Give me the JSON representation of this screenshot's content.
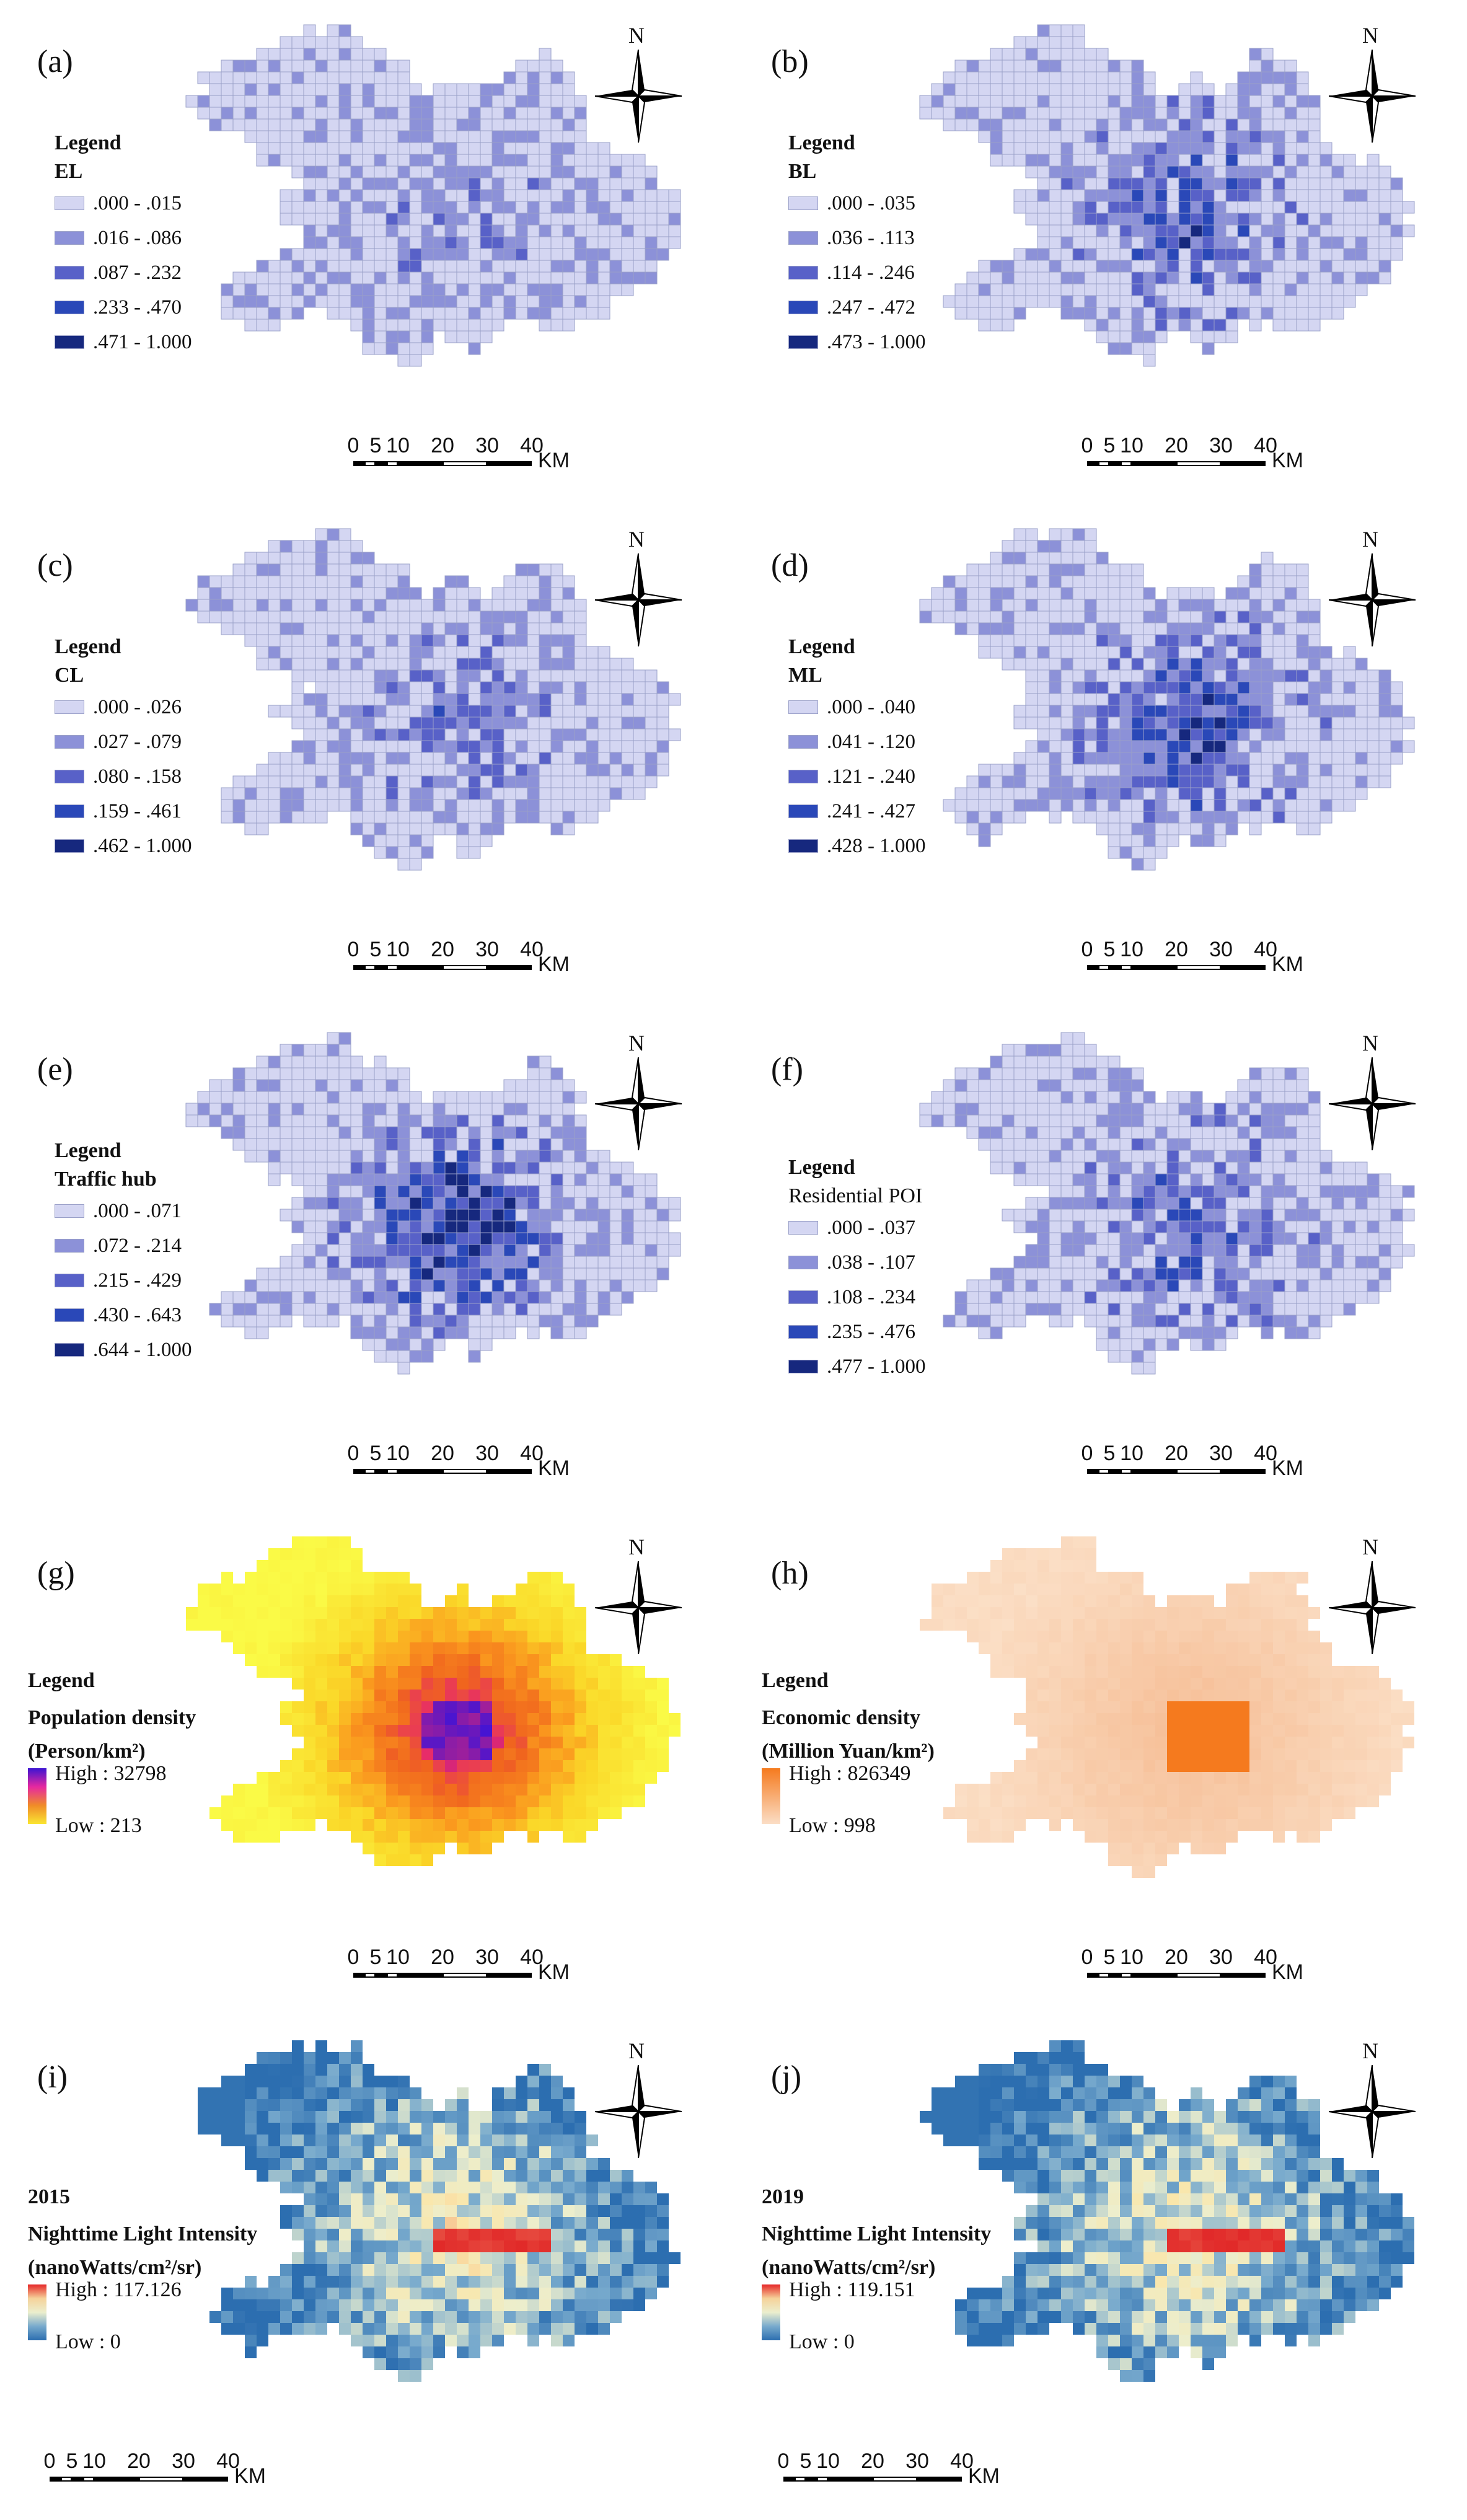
{
  "north_label": "N",
  "scale": {
    "ticks": [
      "0",
      "5",
      "10",
      "20",
      "30",
      "40"
    ],
    "unit": "KM"
  },
  "panels": [
    {
      "id": "a",
      "label": "(a)",
      "legend_title": "Legend",
      "variable": "EL",
      "kind": "class",
      "classes": [
        ".000 - .015",
        ".016 - .086",
        ".087 - .232",
        ".233 - .470",
        ".471 - 1.000"
      ],
      "colors": [
        "#d4d6f2",
        "#8c91d8",
        "#5861c8",
        "#2a48b8",
        "#16287e"
      ],
      "seed": 11,
      "intensity": 0.35
    },
    {
      "id": "b",
      "label": "(b)",
      "legend_title": "Legend",
      "variable": "BL",
      "kind": "class",
      "classes": [
        ".000 - .035",
        ".036 - .113",
        ".114 - .246",
        ".247 - .472",
        ".473 - 1.000"
      ],
      "colors": [
        "#d4d6f2",
        "#8c91d8",
        "#5861c8",
        "#2a48b8",
        "#16287e"
      ],
      "seed": 23,
      "intensity": 0.8
    },
    {
      "id": "c",
      "label": "(c)",
      "legend_title": "Legend",
      "variable": "CL",
      "kind": "class",
      "classes": [
        ".000 - .026",
        ".027 - .079",
        ".080 - .158",
        ".159 - .461",
        ".462 - 1.000"
      ],
      "colors": [
        "#d4d6f2",
        "#8c91d8",
        "#5861c8",
        "#2a48b8",
        "#16287e"
      ],
      "seed": 37,
      "intensity": 0.6
    },
    {
      "id": "d",
      "label": "(d)",
      "legend_title": "Legend",
      "variable": "ML",
      "kind": "class",
      "classes": [
        ".000 - .040",
        ".041 - .120",
        ".121 - .240",
        ".241 - .427",
        ".428 - 1.000"
      ],
      "colors": [
        "#d4d6f2",
        "#8c91d8",
        "#5861c8",
        "#2a48b8",
        "#16287e"
      ],
      "seed": 41,
      "intensity": 0.95
    },
    {
      "id": "e",
      "label": "(e)",
      "legend_title": "Legend",
      "variable": "Traffic hub",
      "kind": "class",
      "classes": [
        ".000 - .071",
        ".072 - .214",
        ".215 - .429",
        ".430 - .643",
        ".644 - 1.000"
      ],
      "colors": [
        "#d4d6f2",
        "#8c91d8",
        "#5861c8",
        "#2a48b8",
        "#16287e"
      ],
      "seed": 53,
      "intensity": 1.1
    },
    {
      "id": "f",
      "label": "(f)",
      "legend_title": "Legend",
      "variable": "Residential POI",
      "kind": "class",
      "classes": [
        ".000 - .037",
        ".038 - .107",
        ".108 - .234",
        ".235 - .476",
        ".477 - 1.000"
      ],
      "colors": [
        "#d4d6f2",
        "#8c91d8",
        "#5861c8",
        "#2a48b8",
        "#16287e"
      ],
      "seed": 67,
      "intensity": 0.75
    },
    {
      "id": "g",
      "label": "(g)",
      "legend_title": "Legend",
      "variable": "Population density",
      "units": "(Person/km²)",
      "kind": "pop",
      "high": "High : 32798",
      "low": "Low : 213",
      "seed": 71
    },
    {
      "id": "h",
      "label": "(h)",
      "legend_title": "Legend",
      "variable": "Economic density",
      "units": "(Million Yuan/km²)",
      "kind": "econ",
      "high": "High : 826349",
      "low": "Low : 998",
      "seed": 83
    },
    {
      "id": "i",
      "label": "(i)",
      "legend_title": "2015",
      "variable": "Nighttime Light Intensity",
      "units": "(nanoWatts/cm²/sr)",
      "kind": "light",
      "high": "High : 117.126",
      "low": "Low : 0",
      "seed": 97
    },
    {
      "id": "j",
      "label": "(j)",
      "legend_title": "2019",
      "variable": "Nighttime Light Intensity",
      "units": "(nanoWatts/cm²/sr)",
      "kind": "light",
      "high": "High : 119.151",
      "low": "Low : 0",
      "seed": 101
    }
  ]
}
